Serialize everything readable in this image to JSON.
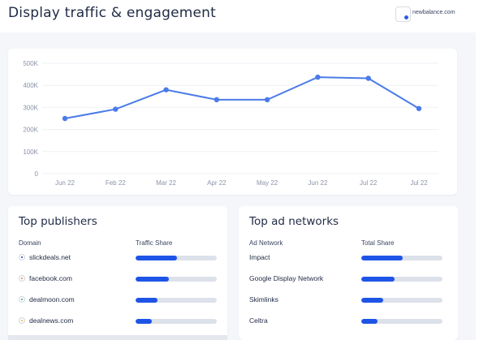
{
  "header": {
    "title": "Display traffic & engagement",
    "domain_label": "newbalance.com"
  },
  "chart_data": {
    "type": "line",
    "categories": [
      "Jun 22",
      "Feb 22",
      "Mar 22",
      "Apr 22",
      "May 22",
      "Jun 22",
      "Jul 22",
      "Jul 22"
    ],
    "values": [
      250000,
      292000,
      380000,
      335000,
      335000,
      437000,
      432000,
      295000
    ],
    "y_ticks": [
      "500K",
      "400K",
      "300K",
      "200K",
      "100K",
      "0"
    ],
    "ylim": [
      0,
      500000
    ],
    "grid": true,
    "line_color": "#4a7be8"
  },
  "publishers": {
    "title": "Top publishers",
    "col_domain": "Domain",
    "col_share": "Traffic Share",
    "rows": [
      {
        "label": "slickdeals.net",
        "share": 0.51,
        "icon": "slickdeals-favicon",
        "color": "#1a3fa0"
      },
      {
        "label": "facebook.com",
        "share": 0.41,
        "icon": "facebook-favicon",
        "color": "#e8822a"
      },
      {
        "label": "dealmoon.com",
        "share": 0.27,
        "icon": "dealmoon-favicon",
        "color": "#2aa876"
      },
      {
        "label": "dealnews.com",
        "share": 0.2,
        "icon": "dealnews-favicon",
        "color": "#f2b21c"
      }
    ]
  },
  "ad_networks": {
    "title": "Top ad networks",
    "col_network": "Ad Network",
    "col_share": "Total Share",
    "rows": [
      {
        "label": "Impact",
        "share": 0.51
      },
      {
        "label": "Google Display Network",
        "share": 0.41
      },
      {
        "label": "Skimlinks",
        "share": 0.27
      },
      {
        "label": "Celtra",
        "share": 0.2
      }
    ]
  }
}
